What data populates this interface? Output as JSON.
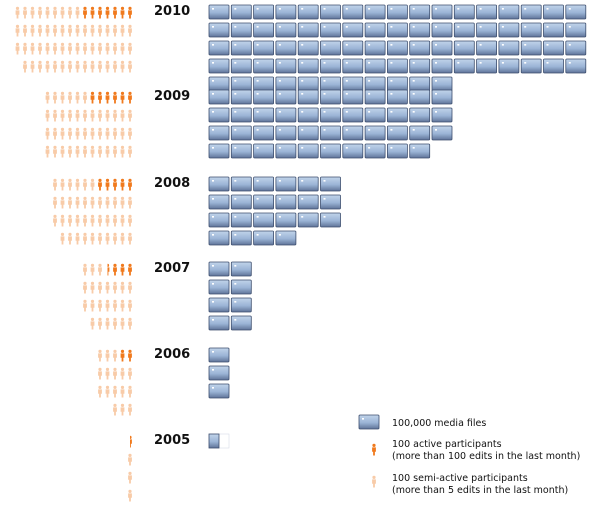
{
  "chart_data": {
    "type": "pictogram",
    "title": "",
    "unit_media": "100,000 media files",
    "unit_active": "100 active participants",
    "unit_semi": "100 semi-active participants",
    "years": [
      {
        "year": "2010",
        "active_icons": 7,
        "semi_icons": 56,
        "media_icons": 79
      },
      {
        "year": "2009",
        "active_icons": 6,
        "semi_icons": 42,
        "media_icons": 43
      },
      {
        "year": "2008",
        "active_icons": 5,
        "semi_icons": 38,
        "media_icons": 22
      },
      {
        "year": "2007",
        "active_icons": 3.5,
        "semi_icons": 23,
        "media_icons": 8
      },
      {
        "year": "2006",
        "active_icons": 2,
        "semi_icons": 16,
        "media_icons": 3
      },
      {
        "year": "2005",
        "active_icons": 0.5,
        "semi_icons": 3.5,
        "media_icons": 0.5
      }
    ]
  },
  "legend": {
    "media_label": "100,000 media files",
    "active_label": "100 active participants",
    "active_sub": "(more than 100 edits in the last month)",
    "semi_label": "100 semi-active participants",
    "semi_sub": "(more than 5 edits in the last month)"
  },
  "colors": {
    "active": "#f07a1e",
    "semi": "#f8cba8",
    "media_top": "#b0c8e4",
    "media_bottom": "#5f7398",
    "media_border": "#3e4f6f"
  }
}
